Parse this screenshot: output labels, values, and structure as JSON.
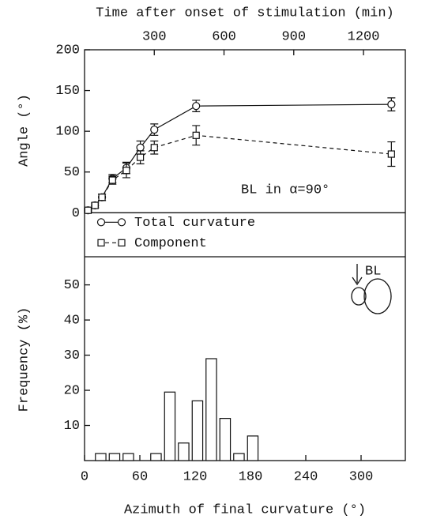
{
  "chart_data": [
    {
      "type": "line",
      "title": "Time after onset of stimulation (min)",
      "y_label": "Angle (°)",
      "annotation": "BL in α=90°",
      "x": [
        15,
        45,
        75,
        120,
        180,
        240,
        300,
        480,
        1320
      ],
      "xlim": [
        0,
        1380
      ],
      "xticks": [
        300,
        600,
        900,
        1200
      ],
      "ylim": [
        -54,
        200
      ],
      "yticks": [
        0,
        50,
        100,
        150,
        200
      ],
      "series": [
        {
          "name": "Total curvature",
          "color": "#111111",
          "marker": "circle",
          "dash": false,
          "values": [
            3,
            9,
            19,
            42,
            55,
            80,
            102,
            131,
            133
          ],
          "errors": [
            2,
            3,
            4,
            5,
            7,
            8,
            7,
            7,
            8
          ]
        },
        {
          "name": "Component",
          "color": "#111111",
          "marker": "square",
          "dash": true,
          "values": [
            3,
            9,
            19,
            40,
            52,
            68,
            80,
            95,
            72
          ],
          "errors": [
            2,
            3,
            4,
            5,
            9,
            8,
            8,
            12,
            15
          ]
        }
      ]
    },
    {
      "type": "histogram",
      "x_label": "Azimuth of final curvature (°)",
      "y_label": "Frequency (%)",
      "annotation": "BL",
      "bins": [
        10,
        25,
        40,
        55,
        70,
        85,
        100,
        115,
        130,
        145,
        160,
        175,
        190
      ],
      "values": [
        2,
        2,
        2,
        0,
        2,
        19.5,
        5,
        17,
        29,
        12,
        2,
        7
      ],
      "color": "#ffffff",
      "xlim": [
        0,
        348
      ],
      "xticks": [
        0,
        60,
        120,
        180,
        240,
        300
      ],
      "ylim": [
        0,
        58
      ],
      "yticks": [
        10,
        20,
        30,
        40,
        50
      ]
    }
  ]
}
